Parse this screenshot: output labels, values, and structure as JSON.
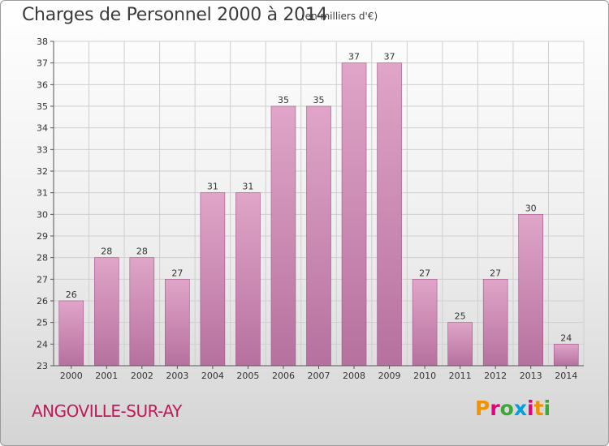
{
  "header": {
    "title": "Charges de Personnel 2000 à 2014",
    "subtitle": "(en milliers d'€)"
  },
  "footer": {
    "commune": "ANGOVILLE-SUR-AY",
    "logo_text": "Proxiti",
    "logo_colors": [
      "#f39200",
      "#e5007d",
      "#3aaa35",
      "#009fe3",
      "#e5007d",
      "#f39200",
      "#3aaa35"
    ]
  },
  "colors": {
    "bar_fill_top": "#e0a5c8",
    "bar_fill_bottom": "#b6719e",
    "bar_stroke": "#a0558a",
    "grid": "#cfcfcf",
    "text": "#333333"
  },
  "chart_data": {
    "type": "bar",
    "title": "Charges de Personnel 2000 à 2014",
    "subtitle": "(en milliers d'€)",
    "categories": [
      "2000",
      "2001",
      "2002",
      "2003",
      "2004",
      "2005",
      "2006",
      "2007",
      "2008",
      "2009",
      "2010",
      "2011",
      "2012",
      "2013",
      "2014"
    ],
    "values": [
      26,
      28,
      28,
      27,
      31,
      31,
      35,
      35,
      37,
      37,
      27,
      25,
      27,
      30,
      24
    ],
    "ylim": [
      23,
      38
    ],
    "yticks": [
      23,
      24,
      25,
      26,
      27,
      28,
      29,
      30,
      31,
      32,
      33,
      34,
      35,
      36,
      37,
      38
    ],
    "grid": true,
    "data_labels": true
  }
}
